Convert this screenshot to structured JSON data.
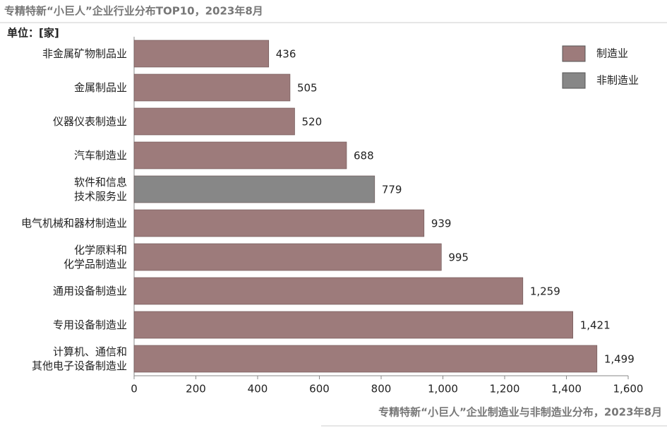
{
  "chart_data": {
    "type": "bar",
    "orientation": "horizontal",
    "title": "专精特新“小巨人”企业行业分布TOP10，2023年8月",
    "unit_label": "单位：[家]",
    "caption": "专精特新“小巨人”企业制造业与非制造业分布，2023年8月",
    "categories": [
      "非金属矿物制品业",
      "金属制品业",
      "仪器仪表制造业",
      "汽车制造业",
      "软件和信息\n技术服务业",
      "电气机械和器材制造业",
      "化学原料和\n化学品制造业",
      "通用设备制造业",
      "专用设备制造业",
      "计算机、通信和\n其他电子设备制造业"
    ],
    "series": [
      {
        "name": "制造业",
        "color": "#9d7b7b",
        "values": [
          436,
          505,
          520,
          688,
          null,
          939,
          995,
          1259,
          1421,
          1499
        ],
        "value_labels": [
          "436",
          "505",
          "520",
          "688",
          null,
          "939",
          "995",
          "1,259",
          "1,421",
          "1,499"
        ]
      },
      {
        "name": "非制造业",
        "color": "#878787",
        "values": [
          null,
          null,
          null,
          null,
          779,
          null,
          null,
          null,
          null,
          null
        ],
        "value_labels": [
          null,
          null,
          null,
          null,
          "779",
          null,
          null,
          null,
          null,
          null
        ]
      }
    ],
    "xlim": [
      0,
      1600
    ],
    "xticks": [
      0,
      200,
      400,
      600,
      800,
      {
        "value": 1000,
        "label": "1,000"
      },
      {
        "value": 1200,
        "label": "1,200"
      },
      {
        "value": 1400,
        "label": "1,400"
      },
      {
        "value": 1600,
        "label": "1,600"
      }
    ],
    "legend": "top-right"
  }
}
